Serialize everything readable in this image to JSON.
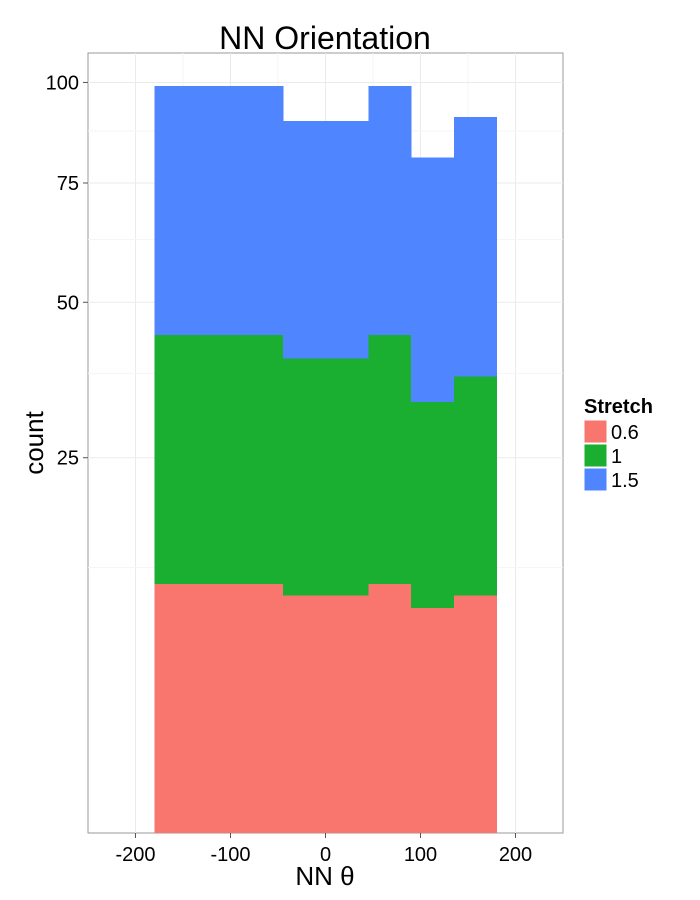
{
  "chart_data": {
    "type": "bar",
    "subtype": "stacked-histogram",
    "title": "NN Orientation",
    "xlabel": "NN θ",
    "ylabel": "count",
    "y_scale": "sqrt",
    "xlim": [
      -250,
      250
    ],
    "ylim": [
      0,
      108
    ],
    "x_ticks": [
      -200,
      -100,
      0,
      100,
      200
    ],
    "x_tick_labels": [
      "-200",
      "-100",
      "0",
      "100",
      "200"
    ],
    "y_ticks": [
      25,
      50,
      75,
      100
    ],
    "y_tick_labels": [
      "25",
      "50",
      "75",
      "100"
    ],
    "grid": true,
    "legend_position": "right",
    "legend_title": "Stretch",
    "bins": [
      {
        "x0": -180,
        "x1": -45
      },
      {
        "x0": -45,
        "x1": 45
      },
      {
        "x0": 45,
        "x1": 90
      },
      {
        "x0": 90,
        "x1": 135
      },
      {
        "x0": 135,
        "x1": 180
      }
    ],
    "series": [
      {
        "name": "0.6",
        "color": "#F8766D",
        "values": [
          11,
          10,
          11,
          9,
          10
        ]
      },
      {
        "name": "1",
        "color": "#1AAF30",
        "values": [
          33,
          30,
          33,
          24,
          27
        ]
      },
      {
        "name": "1.5",
        "color": "#4F86FF",
        "values": [
          55,
          50,
          55,
          48,
          54
        ]
      }
    ]
  }
}
